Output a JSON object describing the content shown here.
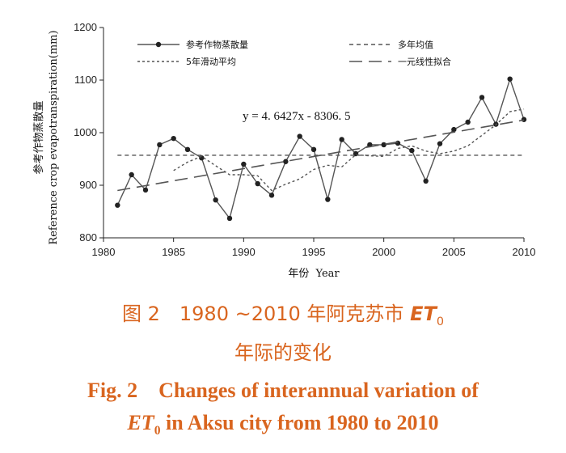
{
  "chart_data": {
    "type": "line",
    "ylabel_zh": "参考作物蒸散量",
    "ylabel_en": "Reference crop evapotranspiration(mm)",
    "xlabel_zh": "年份",
    "xlabel_en": "Year",
    "xlim": [
      1980,
      2010
    ],
    "ylim": [
      800,
      1200
    ],
    "x_ticks": [
      "1980",
      "1985",
      "1990",
      "1995",
      "2000",
      "2005",
      "2010"
    ],
    "y_ticks": [
      "800",
      "900",
      "1000",
      "1100",
      "1200"
    ],
    "x_tick_values": [
      1980,
      1985,
      1990,
      1995,
      2000,
      2005,
      2010
    ],
    "y_tick_values": [
      800,
      900,
      1000,
      1100,
      1200
    ],
    "legend_placement": "top",
    "equation": "y = 4. 6427x - 8306. 5",
    "series": [
      {
        "name": "参考作物蒸散量",
        "style": "solid-markers",
        "x": [
          1981,
          1982,
          1983,
          1984,
          1985,
          1986,
          1987,
          1988,
          1989,
          1990,
          1991,
          1992,
          1993,
          1994,
          1995,
          1996,
          1997,
          1998,
          1999,
          2000,
          2001,
          2002,
          2003,
          2004,
          2005,
          2006,
          2007,
          2008,
          2009,
          2010
        ],
        "values": [
          862,
          920,
          891,
          977,
          989,
          968,
          952,
          872,
          837,
          940,
          903,
          881,
          945,
          993,
          968,
          873,
          987,
          960,
          977,
          977,
          980,
          966,
          908,
          979,
          1006,
          1020,
          1067,
          1016,
          1102,
          1025
        ]
      },
      {
        "name": "多年均值",
        "style": "short-dash",
        "x": [
          1981,
          2010
        ],
        "values": [
          957,
          957
        ]
      },
      {
        "name": "5年滑动平均",
        "style": "dotted",
        "x": [
          1985,
          1986,
          1987,
          1988,
          1989,
          1990,
          1991,
          1992,
          1993,
          1994,
          1995,
          1996,
          1997,
          1998,
          1999,
          2000,
          2001,
          2002,
          2003,
          2004,
          2005,
          2006,
          2007,
          2008,
          2009,
          2010
        ],
        "values": [
          928,
          944,
          955,
          937,
          920,
          920,
          918,
          890,
          902,
          912,
          930,
          938,
          935,
          958,
          956,
          955,
          970,
          975,
          965,
          960,
          965,
          975,
          995,
          1015,
          1040,
          1045
        ]
      },
      {
        "name": "一元线性拟合",
        "style": "long-dash",
        "x": [
          1981,
          2010
        ],
        "values": [
          890,
          1024
        ]
      }
    ]
  },
  "caption": {
    "zh_line1_prefix": "图 2　1980 ~2010 年阿克苏市 ",
    "zh_line1_et": "ET",
    "zh_line1_sub": "0",
    "zh_line2": "年际的变化",
    "en_line1": "Fig. 2　Changes of interannual variation of",
    "en_line2_et": "ET",
    "en_line2_sub": "0",
    "en_line2_suffix": " in Aksu city from 1980 to 2010"
  },
  "colors": {
    "caption": "#d9651f",
    "line": "#555555",
    "axis": "#222222"
  }
}
